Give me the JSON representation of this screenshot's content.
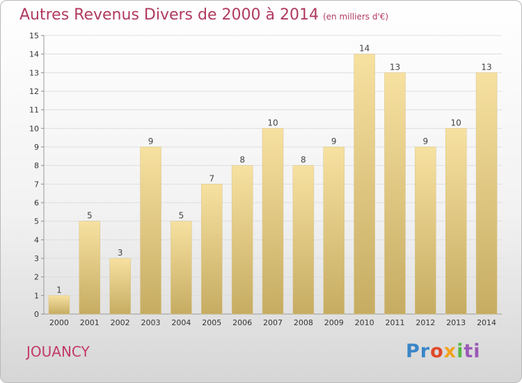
{
  "chart_data": {
    "type": "bar",
    "title": "Autres Revenus Divers de 2000 à 2014",
    "subtitle": "(en milliers d'€)",
    "categories": [
      "2000",
      "2001",
      "2002",
      "2003",
      "2004",
      "2005",
      "2006",
      "2007",
      "2008",
      "2009",
      "2010",
      "2011",
      "2012",
      "2013",
      "2014"
    ],
    "values": [
      1,
      5,
      3,
      9,
      5,
      7,
      8,
      10,
      8,
      9,
      14,
      13,
      9,
      10,
      13
    ],
    "ylim": [
      0,
      15
    ],
    "yticks": [
      0,
      1,
      2,
      3,
      4,
      5,
      6,
      7,
      8,
      9,
      10,
      11,
      12,
      13,
      14,
      15
    ],
    "grid": true,
    "bar_color_top": "#f7e1a1",
    "bar_color_bottom": "#c6ac62"
  },
  "footer": {
    "commune": "JOUANCY",
    "logo_parts": [
      "Pr",
      "o",
      "x",
      "i",
      "ti"
    ]
  }
}
